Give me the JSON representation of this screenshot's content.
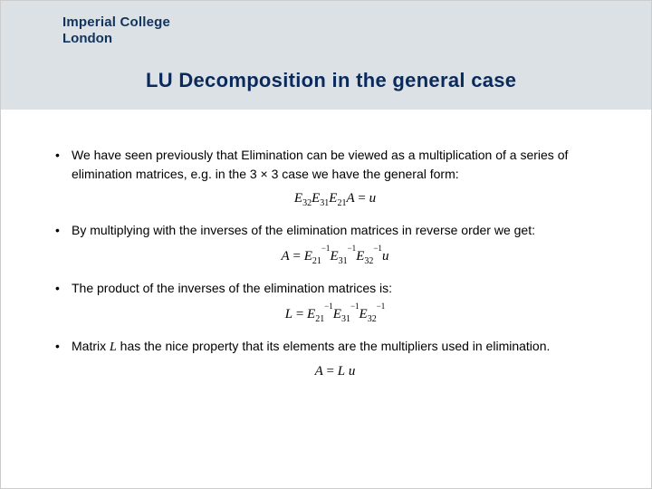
{
  "logo": {
    "line1": "Imperial College",
    "line2": "London",
    "color": "#11335c"
  },
  "header": {
    "background": "#dce1e5"
  },
  "title": {
    "text": "LU Decomposition in the general case",
    "color": "#0a2a5c",
    "fontsize": 22
  },
  "bullets": {
    "b1": "We have seen previously that Elimination can be viewed as a multiplication of a series of elimination matrices, e.g. in the 3 × 3 case we have the general form:",
    "b2": "By multiplying with the inverses of the elimination matrices in reverse order we get:",
    "b3": "The product of the inverses of the elimination matrices is:",
    "b4_pre": "Matrix ",
    "b4_L": "L",
    "b4_post": " has the nice property that its elements are the multipliers used in elimination."
  },
  "equations": {
    "eq1": {
      "E": "E",
      "s32": "32",
      "s31": "31",
      "s21": "21",
      "A": "A",
      "eq": " = ",
      "u": "u"
    },
    "eq2": {
      "A": "A",
      "eq": " = ",
      "E": "E",
      "s21": "21",
      "i1": "−1",
      "s31": "31",
      "i2": "−1",
      "s32": "32",
      "i3": "−1",
      "u": "u"
    },
    "eq3": {
      "L": "L",
      "eq": " = ",
      "E": "E",
      "s21": "21",
      "i1": "−1",
      "s31": "31",
      "i2": "−1",
      "s32": "32",
      "i3": "−1"
    },
    "eq4": {
      "A": "A",
      "eq": " = ",
      "L": "L",
      "sp": " ",
      "u": "u"
    }
  },
  "styling": {
    "body_fontsize": 14,
    "text_color": "#000000",
    "background": "#ffffff"
  }
}
